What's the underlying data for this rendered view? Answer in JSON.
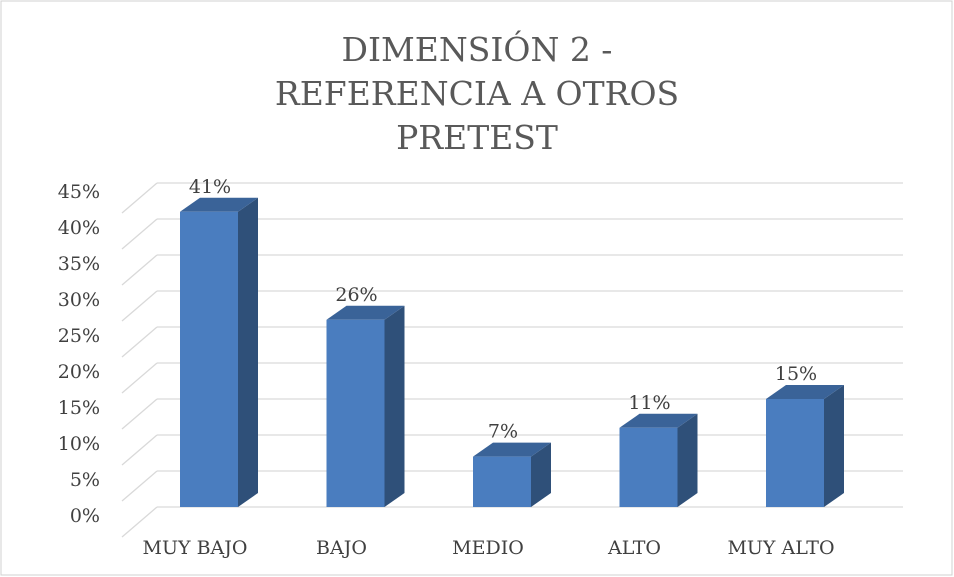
{
  "chart_data": {
    "type": "bar3d",
    "title": "DIMENSIÓN 2 - REFERENCIA A OTROS PRETEST",
    "categories": [
      "MUY BAJO",
      "BAJO",
      "MEDIO",
      "ALTO",
      "MUY ALTO"
    ],
    "values": [
      41,
      26,
      7,
      11,
      15
    ],
    "value_labels": [
      "41%",
      "26%",
      "7%",
      "11%",
      "15%"
    ],
    "color": "#4a7dbf",
    "ylim": [
      0,
      45
    ],
    "yticks": [
      {
        "value": 0,
        "label": "0%"
      },
      {
        "value": 5,
        "label": "5%"
      },
      {
        "value": 10,
        "label": "10%"
      },
      {
        "value": 15,
        "label": "15%"
      },
      {
        "value": 20,
        "label": "20%"
      },
      {
        "value": 25,
        "label": "25%"
      },
      {
        "value": 30,
        "label": "30%"
      },
      {
        "value": 35,
        "label": "35%"
      },
      {
        "value": 40,
        "label": "40%"
      },
      {
        "value": 45,
        "label": "45%"
      }
    ],
    "grid": true
  }
}
